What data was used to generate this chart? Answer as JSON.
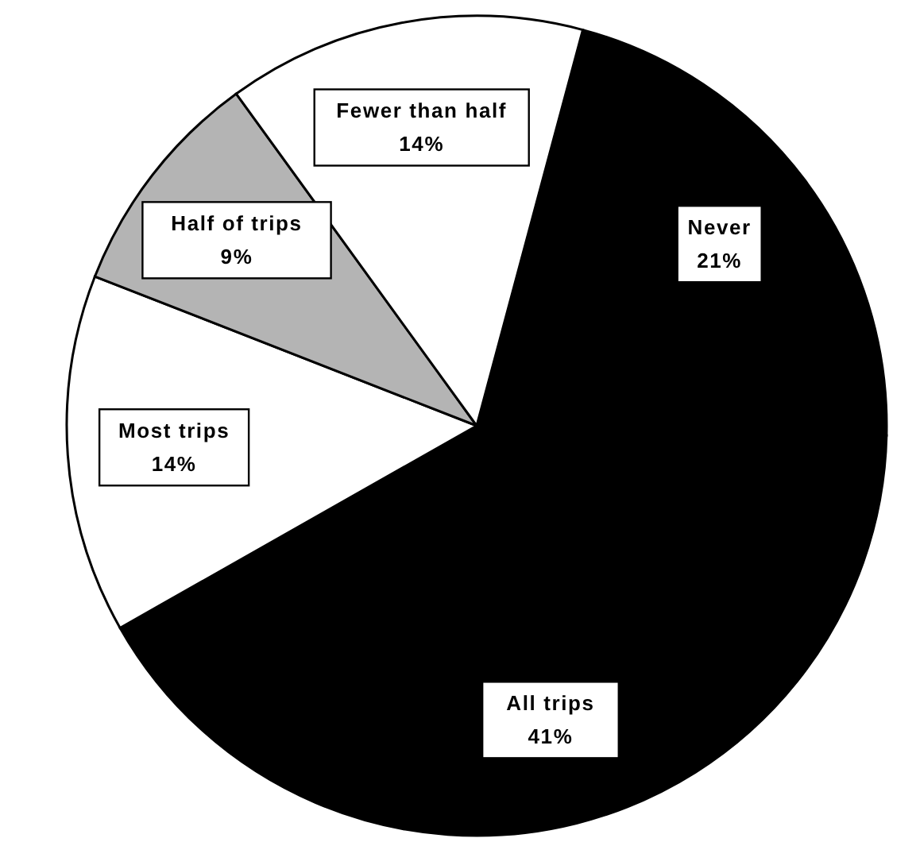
{
  "chart_data": {
    "type": "pie",
    "categories": [
      "Never",
      "All trips",
      "Most trips",
      "Half of trips",
      "Fewer than half"
    ],
    "values": [
      21,
      41,
      14,
      9,
      14
    ],
    "value_labels": [
      "21%",
      "41%",
      "14%",
      "9%",
      "14%"
    ],
    "colors": [
      "#000000",
      "#000000",
      "#ffffff",
      "#b4b4b4",
      "#ffffff"
    ]
  }
}
